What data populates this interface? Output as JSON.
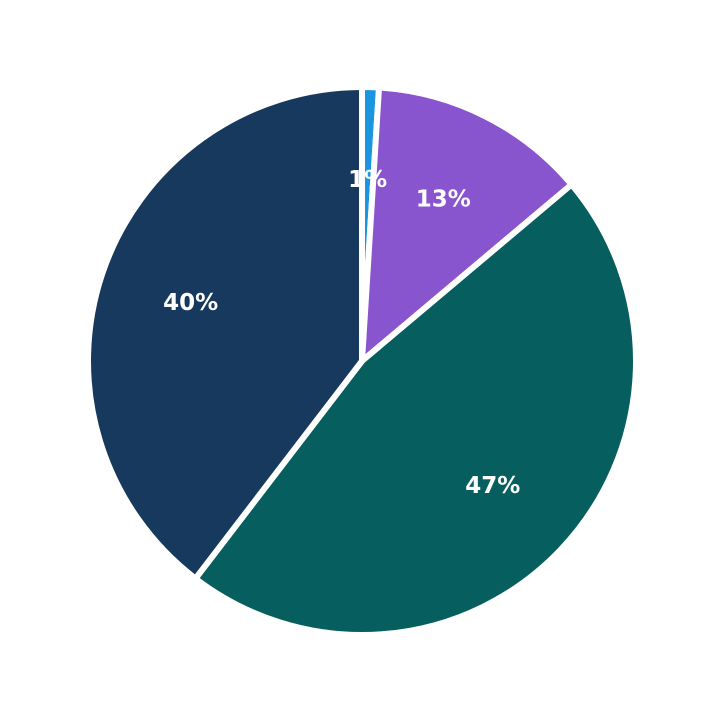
{
  "chart_data": {
    "type": "pie",
    "title": "",
    "legend": "none",
    "background": "#ffffff",
    "edge_color": "#ffffff",
    "label_color": "#ffffff",
    "start_angle": 90,
    "counterclock": false,
    "slices": [
      {
        "name": "azure",
        "label": "1%",
        "value": 1,
        "color": "#1b95e0"
      },
      {
        "name": "purple",
        "label": "13%",
        "value": 13,
        "color": "#8955ce"
      },
      {
        "name": "teal",
        "label": "47%",
        "value": 47,
        "color": "#065f5e"
      },
      {
        "name": "navy",
        "label": "40%",
        "value": 40,
        "color": "#17395e"
      }
    ]
  }
}
